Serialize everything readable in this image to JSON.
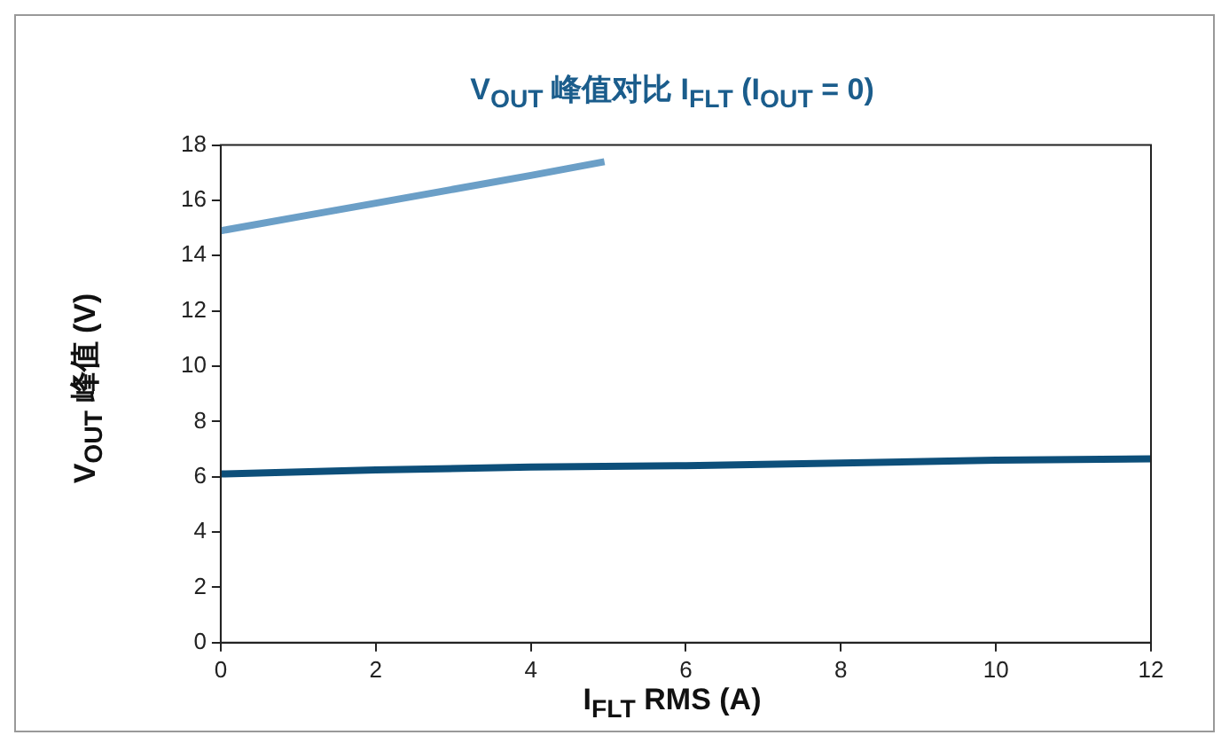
{
  "chart_data": {
    "type": "line",
    "title": "V$_{OUT}$ 峰值对比 I$_{FLT}$ (I$_{OUT}$ = 0)",
    "xlabel": "I$_{FLT}$ RMS (A)",
    "ylabel": "V$_{OUT}$ 峰值 (V)",
    "xlim": [
      0,
      12
    ],
    "xticks": [
      0,
      2,
      4,
      6,
      8,
      10,
      12
    ],
    "ylim": [
      0,
      18
    ],
    "yticks": [
      0,
      2,
      4,
      6,
      8,
      10,
      12,
      14,
      16,
      18
    ],
    "grid": false,
    "legend": false,
    "marker": "none",
    "line_style": "solid",
    "series": [
      {
        "color": "#0d4f7a",
        "x": [
          0,
          2,
          4,
          6,
          8,
          10,
          12
        ],
        "values": [
          6.1,
          6.25,
          6.35,
          6.4,
          6.5,
          6.6,
          6.65
        ]
      },
      {
        "color": "#6b9fc7",
        "x": [
          0,
          1,
          2,
          3,
          4,
          4.95
        ],
        "values": [
          14.9,
          15.4,
          15.9,
          16.4,
          16.9,
          17.4
        ]
      }
    ]
  }
}
